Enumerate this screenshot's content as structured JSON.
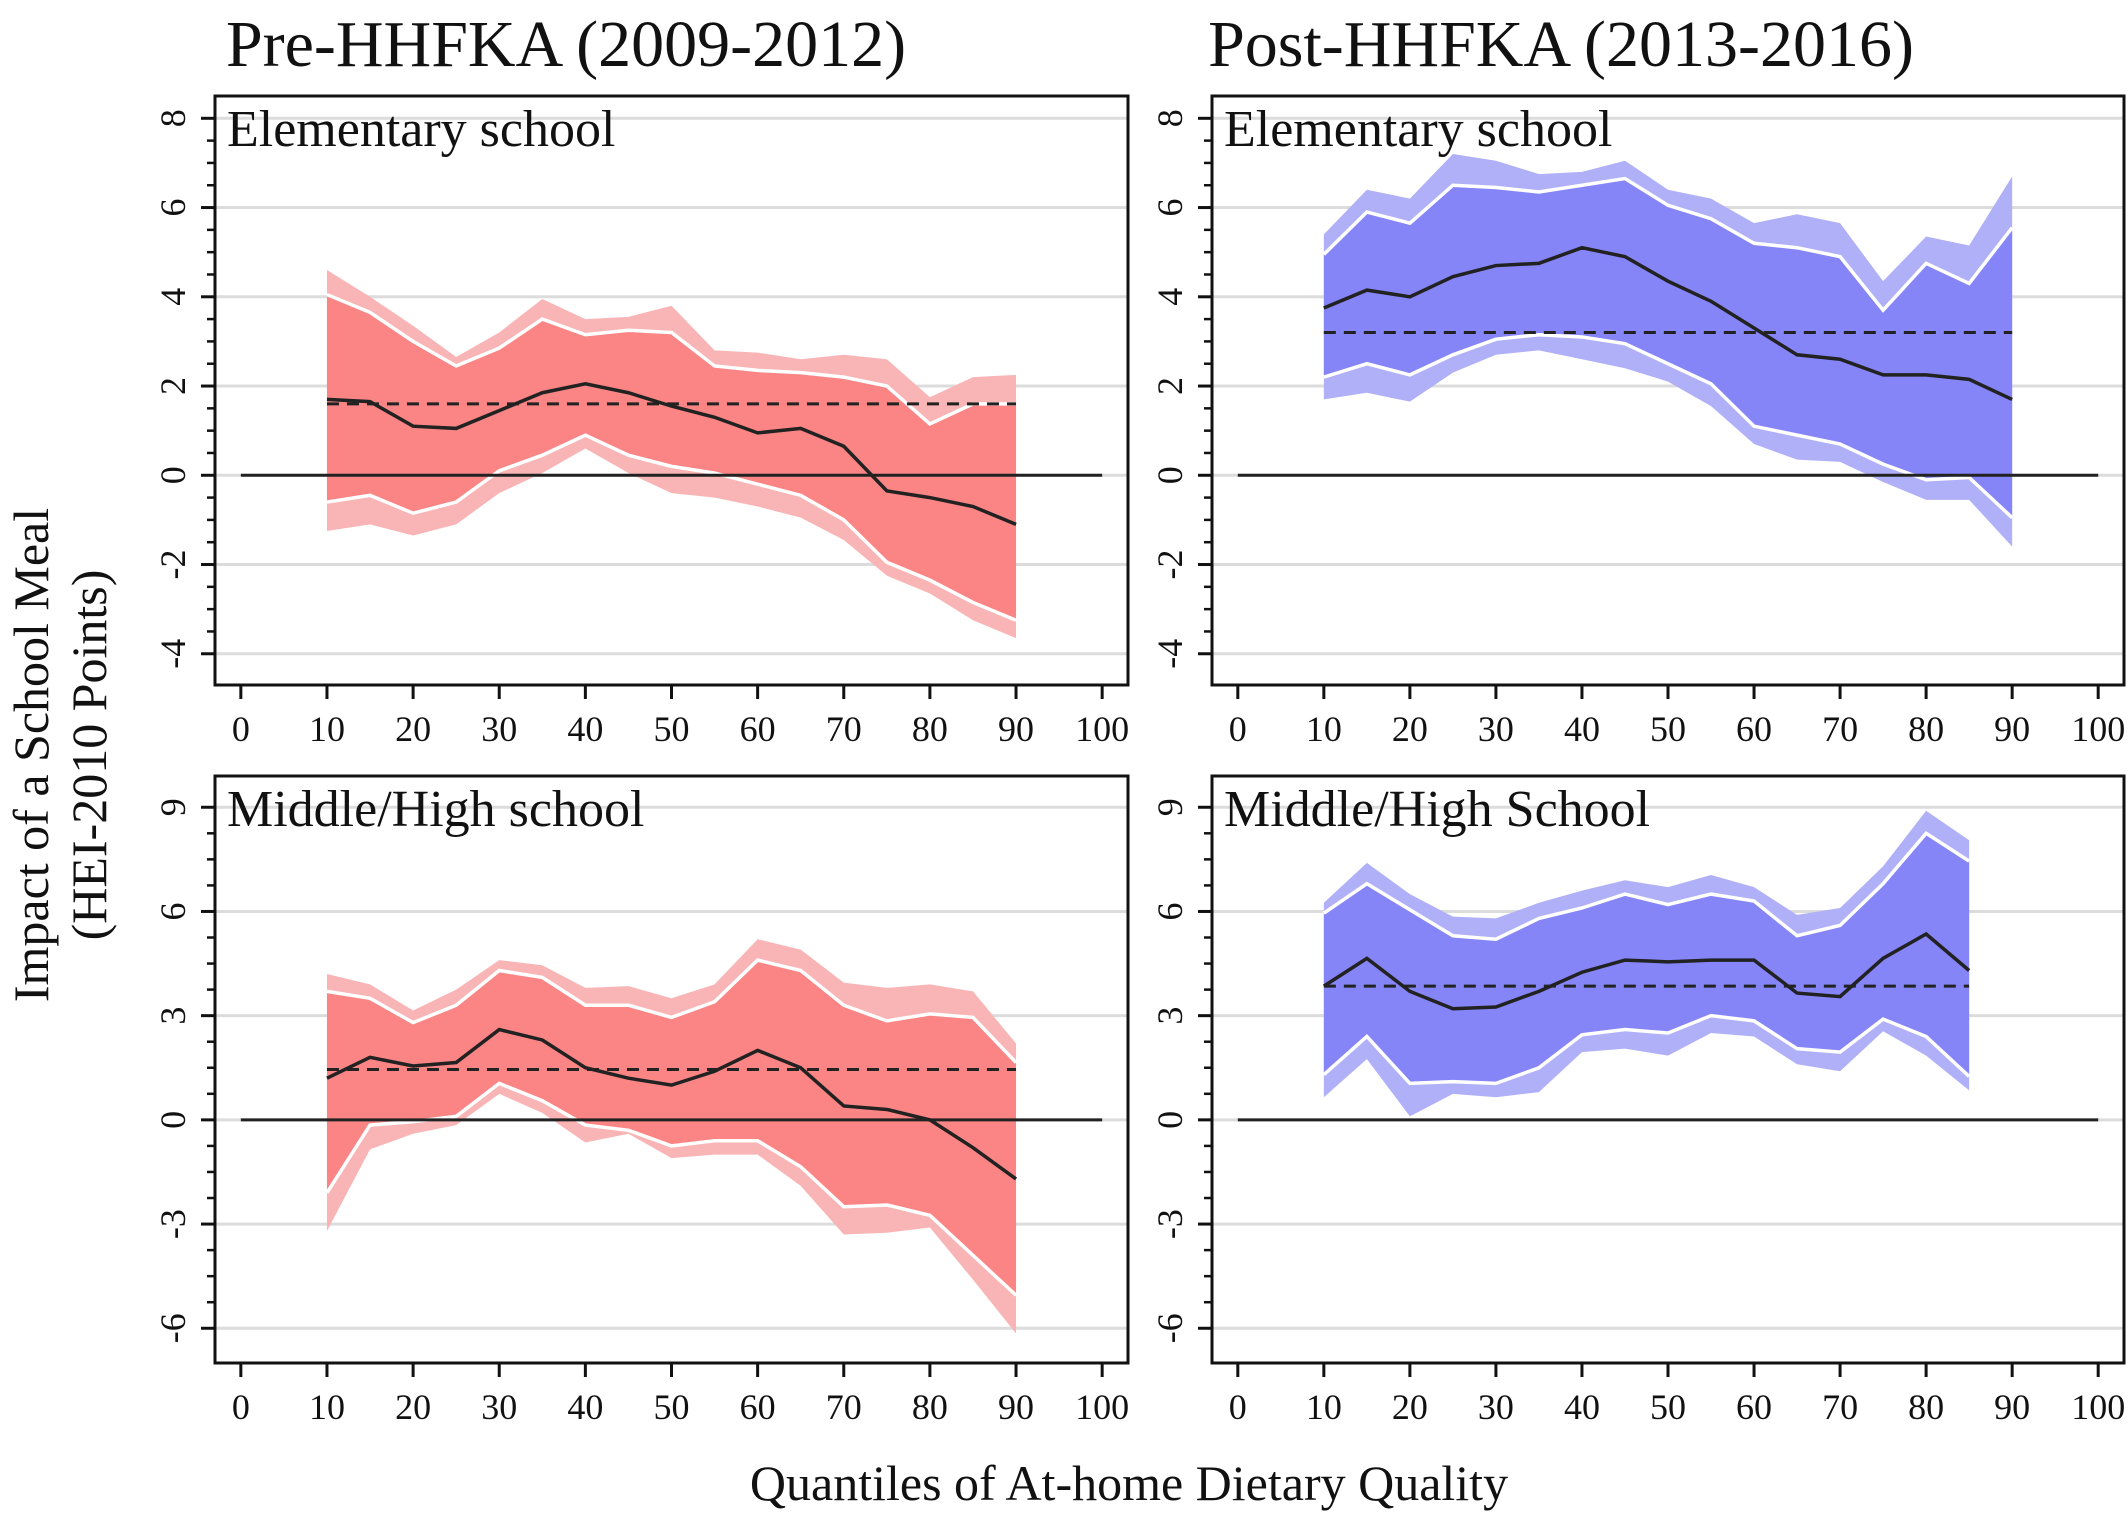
{
  "figure": {
    "column_titles": [
      "Pre-HHFKA (2009-2012)",
      "Post-HHFKA (2013-2016)"
    ],
    "ylabel_line1": "Impact of a School Meal",
    "ylabel_line2": "(HEI-2010 Points)",
    "xlabel": "Quantiles of At-home Dietary Quality"
  },
  "colors": {
    "pre_outer": "#f9b5b5",
    "pre_inner": "#fb8585",
    "post_outer": "#b0b0f8",
    "post_inner": "#8585f8",
    "line": "#222222",
    "ci_edge": "#ffffff",
    "grid": "#dcdcdc"
  },
  "chart_data": [
    {
      "type": "line",
      "panel": "Pre-HHFKA (2009-2012)",
      "label": "Elementary school",
      "x": [
        10,
        15,
        20,
        25,
        30,
        35,
        40,
        45,
        50,
        55,
        60,
        65,
        70,
        75,
        80,
        85,
        90
      ],
      "estimate": [
        1.7,
        1.65,
        1.1,
        1.05,
        1.45,
        1.85,
        2.05,
        1.85,
        1.55,
        1.3,
        0.95,
        1.05,
        0.65,
        -0.35,
        -0.5,
        -0.7,
        -1.1
      ],
      "ci_inner_upper": [
        4.05,
        3.65,
        3.0,
        2.45,
        2.85,
        3.5,
        3.15,
        3.25,
        3.2,
        2.45,
        2.35,
        2.3,
        2.2,
        2.0,
        1.15,
        1.6,
        1.6
      ],
      "ci_inner_lower": [
        -0.6,
        -0.45,
        -0.85,
        -0.6,
        0.1,
        0.45,
        0.9,
        0.45,
        0.2,
        0.05,
        -0.2,
        -0.45,
        -1.0,
        -1.95,
        -2.35,
        -2.85,
        -3.25
      ],
      "ci_outer_upper": [
        4.6,
        4.0,
        3.35,
        2.65,
        3.2,
        3.95,
        3.5,
        3.55,
        3.8,
        2.8,
        2.75,
        2.6,
        2.7,
        2.6,
        1.75,
        2.2,
        2.25
      ],
      "ci_outer_lower": [
        -1.25,
        -1.1,
        -1.35,
        -1.1,
        -0.4,
        0.05,
        0.6,
        0.05,
        -0.4,
        -0.5,
        -0.7,
        -0.95,
        -1.45,
        -2.25,
        -2.65,
        -3.25,
        -3.65
      ],
      "mean_line": 1.6,
      "ylim": [
        -4.7,
        8.5
      ],
      "yticks": [
        -4,
        -2,
        0,
        2,
        4,
        6,
        8
      ],
      "xticks": [
        0,
        10,
        20,
        30,
        40,
        50,
        60,
        70,
        80,
        90,
        100
      ],
      "xlim": [
        -3,
        103
      ]
    },
    {
      "type": "line",
      "panel": "Post-HHFKA (2013-2016)",
      "label": "Elementary school",
      "x": [
        10,
        15,
        20,
        25,
        30,
        35,
        40,
        45,
        50,
        55,
        60,
        65,
        70,
        75,
        80,
        85,
        90
      ],
      "estimate": [
        3.75,
        4.15,
        4.0,
        4.45,
        4.7,
        4.75,
        5.1,
        4.9,
        4.35,
        3.9,
        3.3,
        2.7,
        2.6,
        2.25,
        2.25,
        2.15,
        1.7
      ],
      "ci_inner_upper": [
        4.95,
        5.9,
        5.65,
        6.5,
        6.45,
        6.35,
        6.5,
        6.65,
        6.05,
        5.75,
        5.2,
        5.1,
        4.9,
        3.7,
        4.75,
        4.3,
        5.55
      ],
      "ci_inner_lower": [
        2.2,
        2.5,
        2.25,
        2.7,
        3.05,
        3.15,
        3.1,
        2.95,
        2.5,
        2.05,
        1.1,
        0.9,
        0.7,
        0.25,
        -0.1,
        -0.05,
        -0.95
      ],
      "ci_outer_upper": [
        5.4,
        6.4,
        6.2,
        7.2,
        7.05,
        6.75,
        6.8,
        7.05,
        6.4,
        6.2,
        5.65,
        5.85,
        5.65,
        4.35,
        5.35,
        5.15,
        6.7
      ],
      "ci_outer_lower": [
        1.7,
        1.85,
        1.65,
        2.3,
        2.7,
        2.8,
        2.6,
        2.4,
        2.1,
        1.55,
        0.7,
        0.35,
        0.3,
        -0.15,
        -0.55,
        -0.55,
        -1.6
      ],
      "mean_line": 3.2,
      "ylim": [
        -4.7,
        8.5
      ],
      "yticks": [
        -4,
        -2,
        0,
        2,
        4,
        6,
        8
      ],
      "xticks": [
        0,
        10,
        20,
        30,
        40,
        50,
        60,
        70,
        80,
        90,
        100
      ],
      "xlim": [
        -3,
        103
      ]
    },
    {
      "type": "line",
      "panel": "Pre-HHFKA (2009-2012)",
      "label": "Middle/High school",
      "x": [
        10,
        15,
        20,
        25,
        30,
        35,
        40,
        45,
        50,
        55,
        60,
        65,
        70,
        75,
        80,
        85,
        90
      ],
      "estimate": [
        1.2,
        1.8,
        1.55,
        1.65,
        2.6,
        2.3,
        1.5,
        1.2,
        1.0,
        1.4,
        2.0,
        1.5,
        0.4,
        0.3,
        0.0,
        -0.8,
        -1.7
      ],
      "ci_inner_upper": [
        3.7,
        3.5,
        2.8,
        3.3,
        4.3,
        4.1,
        3.3,
        3.3,
        2.95,
        3.4,
        4.6,
        4.3,
        3.3,
        2.85,
        3.05,
        2.95,
        1.65
      ],
      "ci_inner_lower": [
        -2.1,
        -0.15,
        -0.05,
        0.1,
        1.05,
        0.55,
        -0.15,
        -0.3,
        -0.75,
        -0.6,
        -0.6,
        -1.35,
        -2.5,
        -2.45,
        -2.75,
        -3.9,
        -5.05
      ],
      "ci_outer_upper": [
        4.2,
        3.9,
        3.15,
        3.75,
        4.6,
        4.45,
        3.8,
        3.85,
        3.5,
        3.9,
        5.2,
        4.9,
        3.95,
        3.8,
        3.9,
        3.7,
        2.2
      ],
      "ci_outer_lower": [
        -3.2,
        -0.85,
        -0.4,
        -0.15,
        0.75,
        0.2,
        -0.65,
        -0.4,
        -1.1,
        -1.0,
        -1.0,
        -1.9,
        -3.3,
        -3.25,
        -3.1,
        -4.6,
        -6.15
      ],
      "mean_line": 1.45,
      "ylim": [
        -7.0,
        9.9
      ],
      "yticks": [
        -6,
        -3,
        0,
        3,
        6,
        9
      ],
      "xticks": [
        0,
        10,
        20,
        30,
        40,
        50,
        60,
        70,
        80,
        90,
        100
      ],
      "xlim": [
        -3,
        103
      ]
    },
    {
      "type": "line",
      "panel": "Post-HHFKA (2013-2016)",
      "label": "Middle/High School",
      "x": [
        10,
        15,
        20,
        25,
        30,
        35,
        40,
        45,
        50,
        55,
        60,
        65,
        70,
        75,
        80,
        85
      ],
      "estimate": [
        3.85,
        4.65,
        3.7,
        3.2,
        3.25,
        3.7,
        4.25,
        4.6,
        4.55,
        4.6,
        4.6,
        3.65,
        3.55,
        4.65,
        5.35,
        4.3
      ],
      "ci_inner_upper": [
        5.95,
        6.8,
        6.05,
        5.3,
        5.2,
        5.8,
        6.1,
        6.5,
        6.2,
        6.5,
        6.3,
        5.3,
        5.6,
        6.8,
        8.25,
        7.45
      ],
      "ci_inner_lower": [
        1.3,
        2.4,
        1.05,
        1.1,
        1.05,
        1.5,
        2.45,
        2.6,
        2.5,
        3.0,
        2.85,
        2.05,
        1.95,
        2.9,
        2.4,
        1.25
      ],
      "ci_outer_upper": [
        6.25,
        7.4,
        6.5,
        5.85,
        5.8,
        6.25,
        6.6,
        6.9,
        6.7,
        7.05,
        6.7,
        5.9,
        6.1,
        7.3,
        8.9,
        8.05
      ],
      "ci_outer_lower": [
        0.65,
        1.75,
        0.1,
        0.75,
        0.65,
        0.8,
        1.95,
        2.05,
        1.85,
        2.5,
        2.4,
        1.6,
        1.4,
        2.55,
        1.85,
        0.85
      ],
      "mean_line": 3.85,
      "ylim": [
        -7.0,
        9.9
      ],
      "yticks": [
        -6,
        -3,
        0,
        3,
        6,
        9
      ],
      "xticks": [
        0,
        10,
        20,
        30,
        40,
        50,
        60,
        70,
        80,
        90,
        100
      ],
      "xlim": [
        -3,
        103
      ]
    }
  ]
}
